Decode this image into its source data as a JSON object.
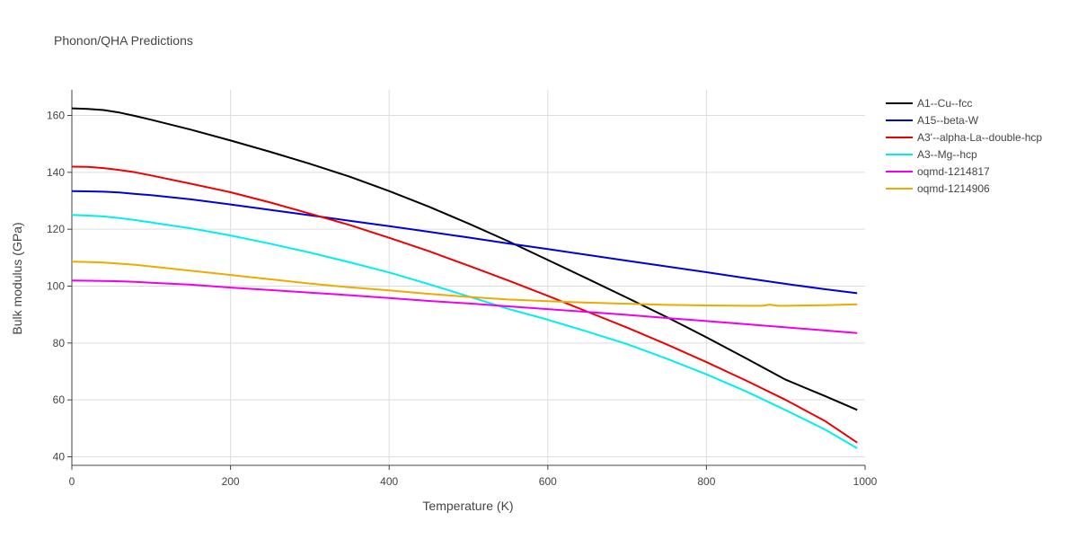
{
  "chart_data": {
    "type": "line",
    "title": "Phonon/QHA Predictions",
    "xlabel": "Temperature (K)",
    "ylabel": "Bulk modulus (GPa)",
    "xlim": [
      0,
      1000
    ],
    "ylim": [
      37,
      169
    ],
    "xticks": [
      0,
      200,
      400,
      600,
      800,
      1000
    ],
    "yticks": [
      40,
      60,
      80,
      100,
      120,
      140,
      160
    ],
    "grid": true,
    "legend": "right",
    "series": [
      {
        "name": "A1--Cu--fcc",
        "color": "#000000",
        "x": [
          0,
          20,
          40,
          60,
          80,
          100,
          150,
          200,
          250,
          300,
          350,
          400,
          450,
          500,
          550,
          600,
          650,
          700,
          750,
          800,
          850,
          900,
          950,
          990
        ],
        "y": [
          162.5,
          162.3,
          161.9,
          161.0,
          159.8,
          158.5,
          155.0,
          151.2,
          147.2,
          143.0,
          138.5,
          133.4,
          127.9,
          122.0,
          115.8,
          109.2,
          102.6,
          95.9,
          89.1,
          82.0,
          74.6,
          67.1,
          61.3,
          56.5
        ]
      },
      {
        "name": "A15--beta-W",
        "color": "#0000dd",
        "x": [
          0,
          20,
          40,
          60,
          80,
          100,
          150,
          200,
          250,
          300,
          350,
          400,
          450,
          500,
          550,
          600,
          650,
          700,
          750,
          800,
          850,
          900,
          950,
          990
        ],
        "y": [
          133.4,
          133.3,
          133.2,
          132.9,
          132.4,
          132.0,
          130.5,
          128.7,
          126.8,
          124.9,
          123.0,
          121.1,
          119.1,
          117.1,
          115.0,
          113.0,
          111.0,
          108.9,
          106.9,
          104.9,
          102.8,
          100.8,
          98.9,
          97.5
        ]
      },
      {
        "name": "A3'--alpha-La--double-hcp",
        "color": "#ee0000",
        "x": [
          0,
          20,
          40,
          60,
          80,
          100,
          150,
          200,
          250,
          300,
          350,
          400,
          450,
          500,
          550,
          600,
          650,
          700,
          750,
          800,
          850,
          900,
          950,
          990
        ],
        "y": [
          142.0,
          141.9,
          141.5,
          140.8,
          140.0,
          138.9,
          136.0,
          133.0,
          129.4,
          125.5,
          121.5,
          117.0,
          112.3,
          107.2,
          102.0,
          96.6,
          91.0,
          85.4,
          79.5,
          73.3,
          66.8,
          60.0,
          52.5,
          45.0
        ]
      },
      {
        "name": "A3--Mg--hcp",
        "color": "#00eeee",
        "x": [
          0,
          20,
          40,
          60,
          80,
          100,
          150,
          200,
          250,
          300,
          350,
          400,
          450,
          500,
          550,
          600,
          650,
          700,
          750,
          800,
          850,
          900,
          950,
          990
        ],
        "y": [
          125.0,
          124.8,
          124.5,
          123.9,
          123.2,
          122.4,
          120.3,
          117.8,
          114.9,
          111.8,
          108.4,
          104.8,
          100.7,
          96.4,
          92.0,
          88.2,
          84.0,
          79.6,
          74.5,
          69.0,
          63.0,
          56.4,
          49.5,
          43.0
        ]
      },
      {
        "name": "oqmd-1214817",
        "color": "#ee00ee",
        "x": [
          0,
          20,
          40,
          60,
          80,
          100,
          150,
          200,
          250,
          300,
          350,
          400,
          450,
          500,
          550,
          600,
          650,
          700,
          750,
          800,
          850,
          900,
          950,
          990
        ],
        "y": [
          102.0,
          101.9,
          101.8,
          101.7,
          101.5,
          101.2,
          100.5,
          99.5,
          98.6,
          97.7,
          96.8,
          95.8,
          94.8,
          93.9,
          92.9,
          91.9,
          90.9,
          89.9,
          88.8,
          87.7,
          86.6,
          85.5,
          84.4,
          83.5
        ]
      },
      {
        "name": "oqmd-1214906",
        "color": "#eeaa00",
        "x": [
          0,
          20,
          40,
          60,
          80,
          100,
          150,
          200,
          250,
          300,
          350,
          400,
          450,
          500,
          550,
          600,
          650,
          700,
          750,
          800,
          850,
          870,
          880,
          890,
          900,
          950,
          990
        ],
        "y": [
          108.6,
          108.5,
          108.3,
          107.9,
          107.5,
          106.9,
          105.4,
          103.9,
          102.4,
          100.9,
          99.6,
          98.5,
          97.3,
          96.2,
          95.3,
          94.7,
          94.2,
          93.8,
          93.4,
          93.2,
          93.1,
          93.1,
          93.5,
          93.1,
          93.1,
          93.3,
          93.6
        ]
      }
    ]
  }
}
